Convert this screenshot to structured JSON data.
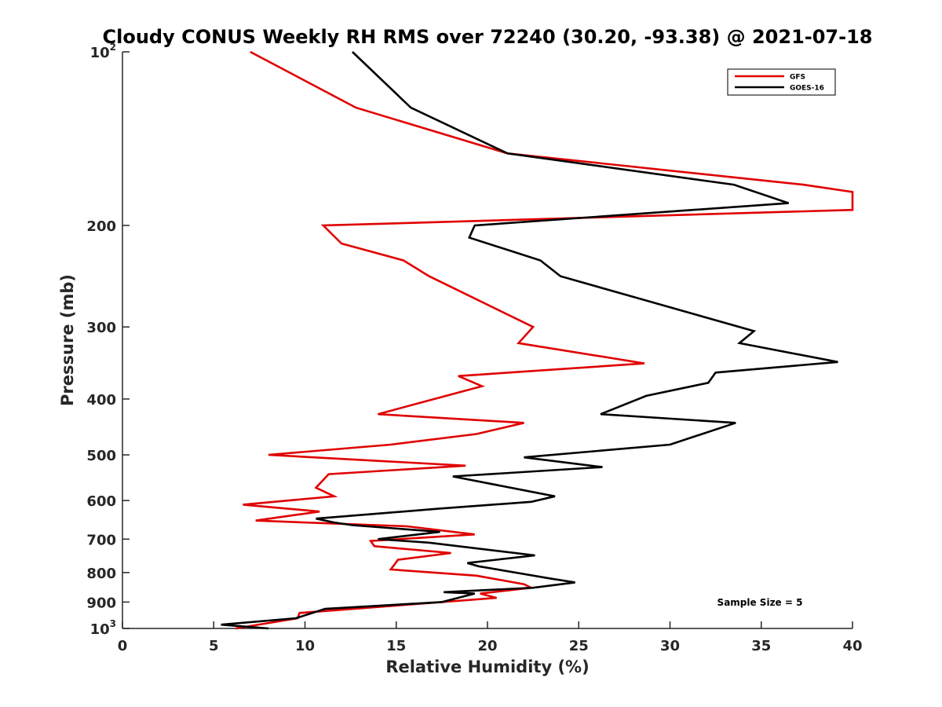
{
  "chart_data": {
    "type": "line",
    "title": "Cloudy CONUS Weekly RH RMS over 72240 (30.20, -93.38) @ 2021-07-18",
    "xlabel": "Relative Humidity (%)",
    "ylabel": "Pressure (mb)",
    "xlim": [
      0,
      40
    ],
    "ylim": [
      100,
      1000
    ],
    "y_scale": "log",
    "y_reversed": true,
    "x_ticks": [
      0,
      5,
      10,
      15,
      20,
      25,
      30,
      35,
      40
    ],
    "x_tick_labels": [
      "0",
      "5",
      "10",
      "15",
      "20",
      "25",
      "30",
      "35",
      "40"
    ],
    "y_ticks": [
      100,
      200,
      300,
      400,
      500,
      600,
      700,
      800,
      900,
      1000
    ],
    "y_tick_labels": [
      {
        "base": "10",
        "exp": "2"
      },
      {
        "base": "200",
        "exp": ""
      },
      {
        "base": "300",
        "exp": ""
      },
      {
        "base": "400",
        "exp": ""
      },
      {
        "base": "500",
        "exp": ""
      },
      {
        "base": "600",
        "exp": ""
      },
      {
        "base": "700",
        "exp": ""
      },
      {
        "base": "800",
        "exp": ""
      },
      {
        "base": "900",
        "exp": ""
      },
      {
        "base": "10",
        "exp": "3"
      }
    ],
    "legend_position": "top-right",
    "annotation": "Sample Size = 5",
    "series": [
      {
        "name": "GFS",
        "color": "#e00000",
        "points": [
          [
            7.0,
            100
          ],
          [
            12.8,
            125
          ],
          [
            21.1,
            150
          ],
          [
            37.3,
            170
          ],
          [
            40.0,
            175
          ],
          [
            40.0,
            188
          ],
          [
            11.0,
            200
          ],
          [
            12.0,
            215
          ],
          [
            15.4,
            230
          ],
          [
            16.8,
            245
          ],
          [
            22.5,
            300
          ],
          [
            21.7,
            320
          ],
          [
            28.6,
            347
          ],
          [
            18.4,
            365
          ],
          [
            19.7,
            380
          ],
          [
            14.0,
            425
          ],
          [
            22.0,
            440
          ],
          [
            19.4,
            460
          ],
          [
            14.7,
            480
          ],
          [
            8.0,
            500
          ],
          [
            18.8,
            522
          ],
          [
            11.3,
            540
          ],
          [
            10.6,
            570
          ],
          [
            11.6,
            590
          ],
          [
            6.6,
            610
          ],
          [
            10.8,
            627
          ],
          [
            7.3,
            650
          ],
          [
            15.6,
            665
          ],
          [
            19.3,
            687
          ],
          [
            13.6,
            705
          ],
          [
            13.8,
            720
          ],
          [
            18.0,
            740
          ],
          [
            15.1,
            760
          ],
          [
            14.7,
            790
          ],
          [
            19.4,
            810
          ],
          [
            22.0,
            838
          ],
          [
            22.4,
            850
          ],
          [
            19.6,
            870
          ],
          [
            20.5,
            885
          ],
          [
            9.7,
            940
          ],
          [
            9.6,
            960
          ],
          [
            6.2,
            1000
          ]
        ]
      },
      {
        "name": "GOES-16",
        "color": "#000000",
        "points": [
          [
            12.6,
            100
          ],
          [
            15.8,
            125
          ],
          [
            21.1,
            150
          ],
          [
            33.5,
            170
          ],
          [
            36.5,
            183
          ],
          [
            19.3,
            200
          ],
          [
            19.0,
            210
          ],
          [
            22.9,
            230
          ],
          [
            24.0,
            245
          ],
          [
            34.6,
            305
          ],
          [
            33.8,
            320
          ],
          [
            39.2,
            345
          ],
          [
            32.5,
            360
          ],
          [
            32.1,
            375
          ],
          [
            28.7,
            395
          ],
          [
            26.2,
            425
          ],
          [
            33.6,
            440
          ],
          [
            30.0,
            480
          ],
          [
            22.0,
            505
          ],
          [
            26.3,
            525
          ],
          [
            18.1,
            545
          ],
          [
            23.7,
            590
          ],
          [
            22.4,
            603
          ],
          [
            17.3,
            620
          ],
          [
            10.6,
            645
          ],
          [
            11.6,
            655
          ],
          [
            12.6,
            662
          ],
          [
            17.4,
            680
          ],
          [
            14.0,
            700
          ],
          [
            16.8,
            710
          ],
          [
            22.6,
            747
          ],
          [
            18.9,
            770
          ],
          [
            19.5,
            780
          ],
          [
            23.5,
            820
          ],
          [
            24.8,
            832
          ],
          [
            22.5,
            850
          ],
          [
            17.6,
            865
          ],
          [
            19.3,
            870
          ],
          [
            17.5,
            900
          ],
          [
            11.1,
            925
          ],
          [
            9.5,
            960
          ],
          [
            5.4,
            985
          ],
          [
            8.0,
            1000
          ]
        ]
      }
    ]
  }
}
